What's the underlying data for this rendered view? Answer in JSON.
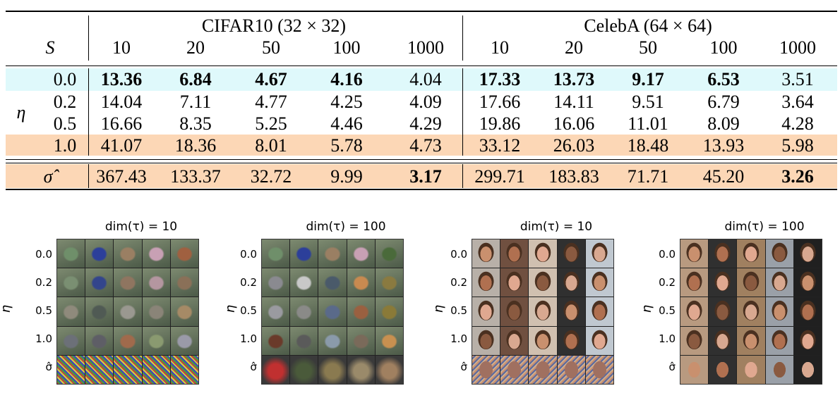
{
  "table": {
    "s_label": "S",
    "eta_label": "η",
    "sigma_label": "σ̂",
    "cifar_header": "CIFAR10 (32 × 32)",
    "celeba_header": "CelebA (64 × 64)",
    "steps": [
      "10",
      "20",
      "50",
      "100",
      "1000"
    ],
    "rows": [
      {
        "eta": "0.0",
        "cifar": [
          "13.36",
          "6.84",
          "4.67",
          "4.16",
          "4.04"
        ],
        "celeba": [
          "17.33",
          "13.73",
          "9.17",
          "6.53",
          "3.51"
        ],
        "bold": [
          true,
          true,
          true,
          true,
          false,
          true,
          true,
          true,
          true,
          false
        ]
      },
      {
        "eta": "0.2",
        "cifar": [
          "14.04",
          "7.11",
          "4.77",
          "4.25",
          "4.09"
        ],
        "celeba": [
          "17.66",
          "14.11",
          "9.51",
          "6.79",
          "3.64"
        ]
      },
      {
        "eta": "0.5",
        "cifar": [
          "16.66",
          "8.35",
          "5.25",
          "4.46",
          "4.29"
        ],
        "celeba": [
          "19.86",
          "16.06",
          "11.01",
          "8.09",
          "4.28"
        ]
      },
      {
        "eta": "1.0",
        "cifar": [
          "41.07",
          "18.36",
          "8.01",
          "5.78",
          "4.73"
        ],
        "celeba": [
          "33.12",
          "26.03",
          "18.48",
          "13.93",
          "5.98"
        ]
      }
    ],
    "sigma_row": {
      "cifar": [
        "367.43",
        "133.37",
        "32.72",
        "9.99",
        "3.17"
      ],
      "celeba": [
        "299.71",
        "183.83",
        "71.71",
        "45.20",
        "3.26"
      ]
    },
    "colors": {
      "ddim_band": "#dff9fb",
      "ddpm_band": "#fcd7b6"
    }
  },
  "panels": [
    {
      "title": "dim(τ) = 10",
      "dataset": "cifar"
    },
    {
      "title": "dim(τ) = 100",
      "dataset": "cifar"
    },
    {
      "title": "dim(τ) = 10",
      "dataset": "celeba"
    },
    {
      "title": "dim(τ) = 100",
      "dataset": "celeba"
    }
  ],
  "grid_row_labels": [
    "0.0",
    "0.2",
    "0.5",
    "1.0",
    "σ̂"
  ],
  "grid_eta_label": "η"
}
